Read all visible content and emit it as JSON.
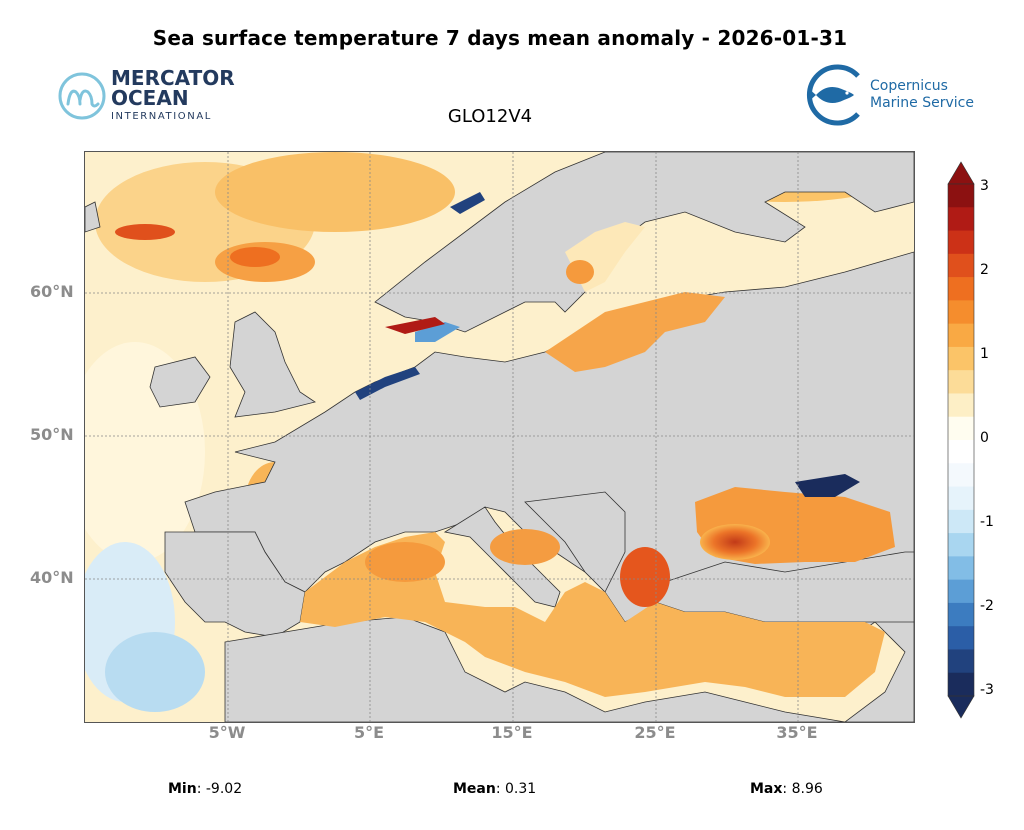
{
  "title": "Sea surface temperature 7 days mean anomaly - 2026-01-31",
  "model": "GLO12V4",
  "logos": {
    "mercator": {
      "line1": "MERCATOR",
      "line2": "OCEAN",
      "line3": "INTERNATIONAL"
    },
    "copernicus": {
      "line1": "Copernicus",
      "line2": "Marine Service"
    }
  },
  "map": {
    "lat_labels": [
      "60°N",
      "50°N",
      "40°N"
    ],
    "lon_labels": [
      "5°W",
      "5°E",
      "15°E",
      "25°E",
      "35°E"
    ],
    "land_color": "#d4d4d4"
  },
  "colorbar": {
    "min": -3,
    "max": 3,
    "tick_labels": [
      "3",
      "2",
      "1",
      "0",
      "-1",
      "-2",
      "-3"
    ],
    "colors": [
      "#1a2c5c",
      "#21427e",
      "#2b5ea7",
      "#3c7cc0",
      "#5c9ed6",
      "#82bde6",
      "#a9d6f0",
      "#cde8f7",
      "#e6f3fb",
      "#f4f9fd",
      "#ffffff",
      "#fffdf0",
      "#fdefc6",
      "#fcdc98",
      "#fbc468",
      "#f9a944",
      "#f58d2d",
      "#ee6f20",
      "#e0501c",
      "#cc3117",
      "#b01b15",
      "#8c1111"
    ]
  },
  "stats": {
    "min_label": "Min",
    "min_value": "-9.02",
    "mean_label": "Mean",
    "mean_value": "0.31",
    "max_label": "Max",
    "max_value": "8.96"
  }
}
